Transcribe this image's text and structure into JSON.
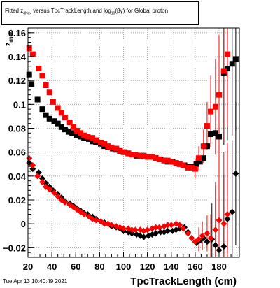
{
  "title": {
    "prefix": "Fitted z",
    "sub1": "dNdx",
    "middle": " versus TpcTrackLength and log",
    "sub2": "10",
    "suffix": "(βγ) for Global proton"
  },
  "timestamp": "Tue Apr 13 10:40:49 2021",
  "colors": {
    "black_series": "#000000",
    "red_series": "#ff0000",
    "grid": "#999999"
  },
  "chart_data": {
    "type": "scatter",
    "title": "Fitted z_dNdx versus TpcTrackLength and log10(βγ) for Global proton",
    "xlabel": "TpcTrackLength (cm)",
    "ylabel": "z_dNdx",
    "xlim": [
      20,
      197
    ],
    "ylim": [
      -0.028,
      0.164
    ],
    "xticks": [
      20,
      40,
      60,
      80,
      100,
      120,
      140,
      160,
      180
    ],
    "yticks": [
      -0.02,
      0,
      0.02,
      0.04,
      0.06,
      0.08,
      0.1,
      0.12,
      0.14,
      0.16
    ],
    "ytick_labels": [
      "−0.02",
      "0",
      "0.02",
      "0.04",
      "0.06",
      "0.08",
      "0.1",
      "0.12",
      "0.14",
      "0.16"
    ],
    "grid": true,
    "series": [
      {
        "color": "black",
        "marker": "square",
        "points": [
          [
            21,
            0.125
          ],
          [
            23,
            0.117
          ],
          [
            28,
            0.104
          ],
          [
            32,
            0.096
          ],
          [
            35,
            0.091
          ],
          [
            38,
            0.088
          ],
          [
            42,
            0.086
          ],
          [
            45,
            0.084
          ],
          [
            48,
            0.081
          ],
          [
            51,
            0.079
          ],
          [
            54,
            0.077
          ],
          [
            57,
            0.076
          ],
          [
            61,
            0.074
          ],
          [
            64,
            0.073
          ],
          [
            67,
            0.072
          ],
          [
            71,
            0.071
          ],
          [
            74,
            0.069
          ],
          [
            77,
            0.068
          ],
          [
            81,
            0.067
          ],
          [
            84,
            0.065
          ],
          [
            87,
            0.064
          ],
          [
            91,
            0.063
          ],
          [
            94,
            0.062
          ],
          [
            97,
            0.061
          ],
          [
            101,
            0.06
          ],
          [
            104,
            0.059
          ],
          [
            107,
            0.058
          ],
          [
            111,
            0.057
          ],
          [
            114,
            0.057
          ],
          [
            117,
            0.057
          ],
          [
            121,
            0.056
          ],
          [
            124,
            0.056
          ],
          [
            127,
            0.055
          ],
          [
            131,
            0.054
          ],
          [
            134,
            0.053
          ],
          [
            137,
            0.052
          ],
          [
            141,
            0.052
          ],
          [
            144,
            0.051
          ],
          [
            147,
            0.05
          ],
          [
            151,
            0.049
          ],
          [
            154,
            0.048
          ],
          [
            157,
            0.048
          ],
          [
            161,
            0.05
          ],
          [
            164,
            0.052
          ],
          [
            167,
            0.055
          ],
          [
            170,
            0.065
          ],
          [
            173,
            0.075
          ],
          [
            177,
            0.076
          ],
          [
            180,
            0.073
          ],
          [
            184,
            0.126
          ],
          [
            187,
            0.13
          ],
          [
            191,
            0.134
          ],
          [
            194,
            0.138
          ]
        ],
        "errors": [
          [
            180,
            0.073,
            0.045
          ],
          [
            184,
            0.126,
            0.06
          ],
          [
            187,
            0.13,
            0.06
          ],
          [
            191,
            0.134,
            0.06
          ],
          [
            194,
            0.138,
            0.06
          ]
        ]
      },
      {
        "color": "red",
        "marker": "square",
        "points": [
          [
            21,
            0.147
          ],
          [
            24,
            0.142
          ],
          [
            29,
            0.13
          ],
          [
            32,
            0.124
          ],
          [
            35,
            0.116
          ],
          [
            38,
            0.11
          ],
          [
            41,
            0.102
          ],
          [
            45,
            0.097
          ],
          [
            48,
            0.093
          ],
          [
            51,
            0.089
          ],
          [
            55,
            0.085
          ],
          [
            58,
            0.081
          ],
          [
            61,
            0.078
          ],
          [
            64,
            0.076
          ],
          [
            67,
            0.074
          ],
          [
            70,
            0.073
          ],
          [
            74,
            0.072
          ],
          [
            77,
            0.07
          ],
          [
            81,
            0.068
          ],
          [
            84,
            0.067
          ],
          [
            87,
            0.065
          ],
          [
            90,
            0.064
          ],
          [
            94,
            0.063
          ],
          [
            97,
            0.061
          ],
          [
            100,
            0.06
          ],
          [
            104,
            0.059
          ],
          [
            107,
            0.058
          ],
          [
            110,
            0.058
          ],
          [
            114,
            0.057
          ],
          [
            117,
            0.057
          ],
          [
            120,
            0.056
          ],
          [
            124,
            0.056
          ],
          [
            127,
            0.055
          ],
          [
            130,
            0.054
          ],
          [
            134,
            0.053
          ],
          [
            137,
            0.053
          ],
          [
            140,
            0.052
          ],
          [
            144,
            0.051
          ],
          [
            147,
            0.05
          ],
          [
            150,
            0.049
          ],
          [
            154,
            0.047
          ],
          [
            157,
            0.047
          ],
          [
            160,
            0.046
          ],
          [
            163,
            0.055
          ],
          [
            167,
            0.065
          ],
          [
            170,
            0.082
          ],
          [
            173,
            0.094
          ],
          [
            177,
            0.098
          ],
          [
            180,
            0.108
          ],
          [
            184,
            0.128
          ],
          [
            187,
            0.142
          ]
        ],
        "errors": [
          [
            160,
            0.046,
            0.008
          ],
          [
            163,
            0.055,
            0.01
          ],
          [
            167,
            0.065,
            0.014
          ],
          [
            170,
            0.082,
            0.02
          ],
          [
            173,
            0.094,
            0.03
          ],
          [
            177,
            0.098,
            0.04
          ],
          [
            180,
            0.108,
            0.05
          ],
          [
            184,
            0.128,
            0.06
          ],
          [
            187,
            0.142,
            0.06
          ]
        ]
      },
      {
        "color": "black",
        "marker": "diamond",
        "points": [
          [
            21,
            0.051
          ],
          [
            24,
            0.046
          ],
          [
            29,
            0.043
          ],
          [
            32,
            0.038
          ],
          [
            35,
            0.034
          ],
          [
            38,
            0.031
          ],
          [
            41,
            0.028
          ],
          [
            45,
            0.025
          ],
          [
            48,
            0.022
          ],
          [
            51,
            0.019
          ],
          [
            55,
            0.017
          ],
          [
            58,
            0.015
          ],
          [
            61,
            0.013
          ],
          [
            64,
            0.011
          ],
          [
            67,
            0.009
          ],
          [
            70,
            0.008
          ],
          [
            74,
            0.006
          ],
          [
            77,
            0.004
          ],
          [
            81,
            0.002
          ],
          [
            84,
            0.001
          ],
          [
            87,
            0.0
          ],
          [
            90,
            -0.002
          ],
          [
            94,
            -0.003
          ],
          [
            97,
            -0.004
          ],
          [
            100,
            -0.006
          ],
          [
            104,
            -0.007
          ],
          [
            107,
            -0.008
          ],
          [
            111,
            -0.009
          ],
          [
            114,
            -0.01
          ],
          [
            117,
            -0.011
          ],
          [
            121,
            -0.01
          ],
          [
            124,
            -0.009
          ],
          [
            127,
            -0.008
          ],
          [
            131,
            -0.007
          ],
          [
            134,
            -0.007
          ],
          [
            137,
            -0.006
          ],
          [
            141,
            -0.006
          ],
          [
            144,
            -0.005
          ],
          [
            147,
            -0.004
          ],
          [
            151,
            -0.003
          ],
          [
            154,
            -0.007
          ],
          [
            157,
            -0.012
          ],
          [
            161,
            -0.016
          ],
          [
            164,
            -0.014
          ],
          [
            167,
            -0.012
          ],
          [
            170,
            -0.015
          ],
          [
            174,
            -0.013
          ],
          [
            177,
            -0.018
          ],
          [
            180,
            -0.022
          ],
          [
            184,
            -0.019
          ],
          [
            187,
            0.004
          ],
          [
            191,
            0.01
          ],
          [
            194,
            0.042
          ]
        ],
        "errors": [
          [
            174,
            -0.013,
            0.03
          ],
          [
            177,
            -0.018,
            0.05
          ],
          [
            180,
            -0.022,
            0.06
          ],
          [
            184,
            -0.019,
            0.06
          ],
          [
            187,
            0.004,
            0.06
          ],
          [
            191,
            0.01,
            0.06
          ],
          [
            194,
            0.042,
            0.06
          ]
        ]
      },
      {
        "color": "red",
        "marker": "diamond",
        "points": [
          [
            21,
            0.055
          ],
          [
            24,
            0.049
          ],
          [
            28,
            0.04
          ],
          [
            32,
            0.035
          ],
          [
            35,
            0.031
          ],
          [
            38,
            0.029
          ],
          [
            42,
            0.026
          ],
          [
            45,
            0.023
          ],
          [
            48,
            0.02
          ],
          [
            51,
            0.018
          ],
          [
            55,
            0.016
          ],
          [
            58,
            0.014
          ],
          [
            61,
            0.012
          ],
          [
            64,
            0.01
          ],
          [
            67,
            0.008
          ],
          [
            71,
            0.006
          ],
          [
            74,
            0.004
          ],
          [
            77,
            0.003
          ],
          [
            81,
            0.002
          ],
          [
            84,
            0.0
          ],
          [
            87,
            0.0
          ],
          [
            90,
            -0.001
          ],
          [
            94,
            -0.002
          ],
          [
            97,
            -0.003
          ],
          [
            100,
            -0.004
          ],
          [
            104,
            -0.004
          ],
          [
            107,
            -0.005
          ],
          [
            110,
            -0.005
          ],
          [
            114,
            -0.005
          ],
          [
            117,
            -0.006
          ],
          [
            120,
            -0.005
          ],
          [
            124,
            -0.004
          ],
          [
            127,
            -0.003
          ],
          [
            130,
            -0.003
          ],
          [
            134,
            -0.002
          ],
          [
            137,
            -0.001
          ],
          [
            140,
            -0.001
          ],
          [
            144,
            0.0
          ],
          [
            147,
            -0.001
          ],
          [
            150,
            -0.004
          ],
          [
            154,
            -0.008
          ],
          [
            157,
            -0.012
          ],
          [
            160,
            -0.015
          ],
          [
            163,
            -0.013
          ],
          [
            166,
            -0.01
          ],
          [
            170,
            -0.008
          ],
          [
            173,
            -0.012
          ],
          [
            177,
            -0.005
          ],
          [
            180,
            0.003
          ],
          [
            184,
            0.0
          ],
          [
            187,
            0.008
          ]
        ],
        "errors": [
          [
            163,
            -0.013,
            0.01
          ],
          [
            166,
            -0.01,
            0.012
          ],
          [
            170,
            -0.008,
            0.015
          ],
          [
            173,
            -0.012,
            0.02
          ],
          [
            177,
            -0.005,
            0.04
          ],
          [
            180,
            0.003,
            0.06
          ],
          [
            184,
            0.0,
            0.06
          ],
          [
            187,
            0.008,
            0.06
          ]
        ]
      }
    ]
  }
}
